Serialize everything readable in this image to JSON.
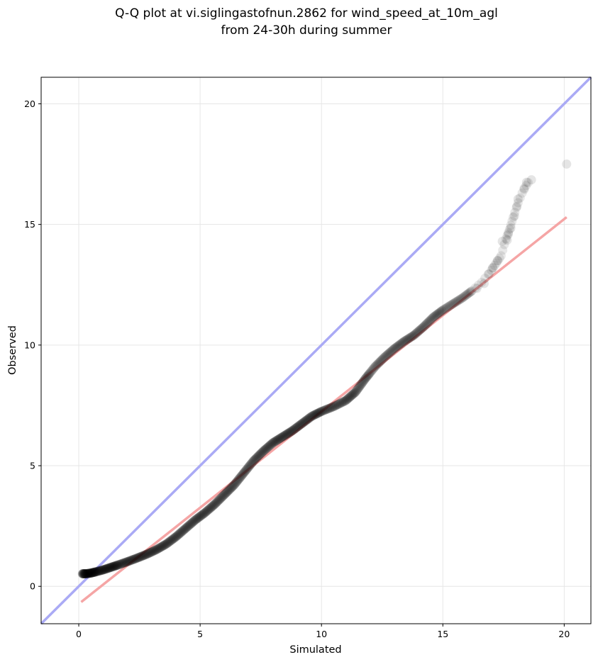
{
  "chart_data": {
    "type": "scatter",
    "title_line1": "Q-Q plot at vi.siglingastofnun.2862 for wind_speed_at_10m_agl",
    "title_line2": "from 24-30h during summer",
    "xlabel": "Simulated",
    "ylabel": "Observed",
    "xlim": [
      -1.55,
      21.1
    ],
    "ylim": [
      -1.55,
      21.1
    ],
    "xticks": [
      0,
      5,
      10,
      15,
      20
    ],
    "yticks": [
      0,
      5,
      10,
      15,
      20
    ],
    "grid": true,
    "colors": {
      "points": "#000000",
      "identity_line": "#aaaaf5",
      "fit_line": "#f5a5a5",
      "grid": "#e6e6e6"
    },
    "identity_line": {
      "x": [
        -1.55,
        21.1
      ],
      "y": [
        -1.55,
        21.1
      ]
    },
    "fit_line": {
      "x": [
        0.1,
        20.1
      ],
      "y": [
        -0.65,
        15.3
      ]
    },
    "quantile_curve": [
      [
        0.15,
        0.52
      ],
      [
        0.3,
        0.52
      ],
      [
        0.5,
        0.55
      ],
      [
        0.7,
        0.6
      ],
      [
        1.0,
        0.68
      ],
      [
        1.3,
        0.78
      ],
      [
        1.6,
        0.88
      ],
      [
        2.0,
        1.02
      ],
      [
        2.4,
        1.17
      ],
      [
        2.8,
        1.33
      ],
      [
        3.2,
        1.52
      ],
      [
        3.6,
        1.75
      ],
      [
        4.0,
        2.05
      ],
      [
        4.4,
        2.4
      ],
      [
        4.8,
        2.75
      ],
      [
        5.2,
        3.05
      ],
      [
        5.6,
        3.4
      ],
      [
        6.0,
        3.8
      ],
      [
        6.4,
        4.2
      ],
      [
        6.8,
        4.7
      ],
      [
        7.2,
        5.2
      ],
      [
        7.6,
        5.6
      ],
      [
        8.0,
        5.95
      ],
      [
        8.4,
        6.2
      ],
      [
        8.8,
        6.45
      ],
      [
        9.2,
        6.75
      ],
      [
        9.6,
        7.05
      ],
      [
        10.0,
        7.25
      ],
      [
        10.5,
        7.45
      ],
      [
        11.0,
        7.7
      ],
      [
        11.4,
        8.05
      ],
      [
        11.8,
        8.6
      ],
      [
        12.2,
        9.1
      ],
      [
        12.6,
        9.5
      ],
      [
        13.0,
        9.85
      ],
      [
        13.4,
        10.15
      ],
      [
        13.8,
        10.4
      ],
      [
        14.2,
        10.75
      ],
      [
        14.6,
        11.15
      ],
      [
        15.0,
        11.45
      ],
      [
        15.4,
        11.7
      ],
      [
        15.8,
        11.95
      ],
      [
        16.2,
        12.25
      ],
      [
        16.6,
        12.6
      ],
      [
        17.0,
        13.1
      ],
      [
        17.2,
        13.4
      ],
      [
        17.4,
        13.7
      ],
      [
        17.6,
        14.4
      ],
      [
        17.75,
        14.8
      ],
      [
        17.9,
        15.3
      ],
      [
        18.1,
        15.9
      ],
      [
        18.35,
        16.5
      ],
      [
        18.6,
        16.85
      ],
      [
        20.1,
        17.5
      ]
    ],
    "tail_points": [
      [
        16.4,
        12.35
      ],
      [
        16.7,
        12.55
      ],
      [
        16.9,
        12.95
      ],
      [
        17.05,
        13.2
      ],
      [
        17.25,
        13.5
      ],
      [
        17.45,
        14.3
      ],
      [
        17.65,
        14.35
      ],
      [
        17.7,
        14.6
      ],
      [
        17.8,
        14.85
      ],
      [
        17.95,
        15.35
      ],
      [
        18.05,
        15.75
      ],
      [
        18.1,
        16.05
      ],
      [
        18.35,
        16.45
      ],
      [
        18.45,
        16.75
      ],
      [
        18.65,
        16.85
      ],
      [
        20.1,
        17.5
      ]
    ]
  }
}
